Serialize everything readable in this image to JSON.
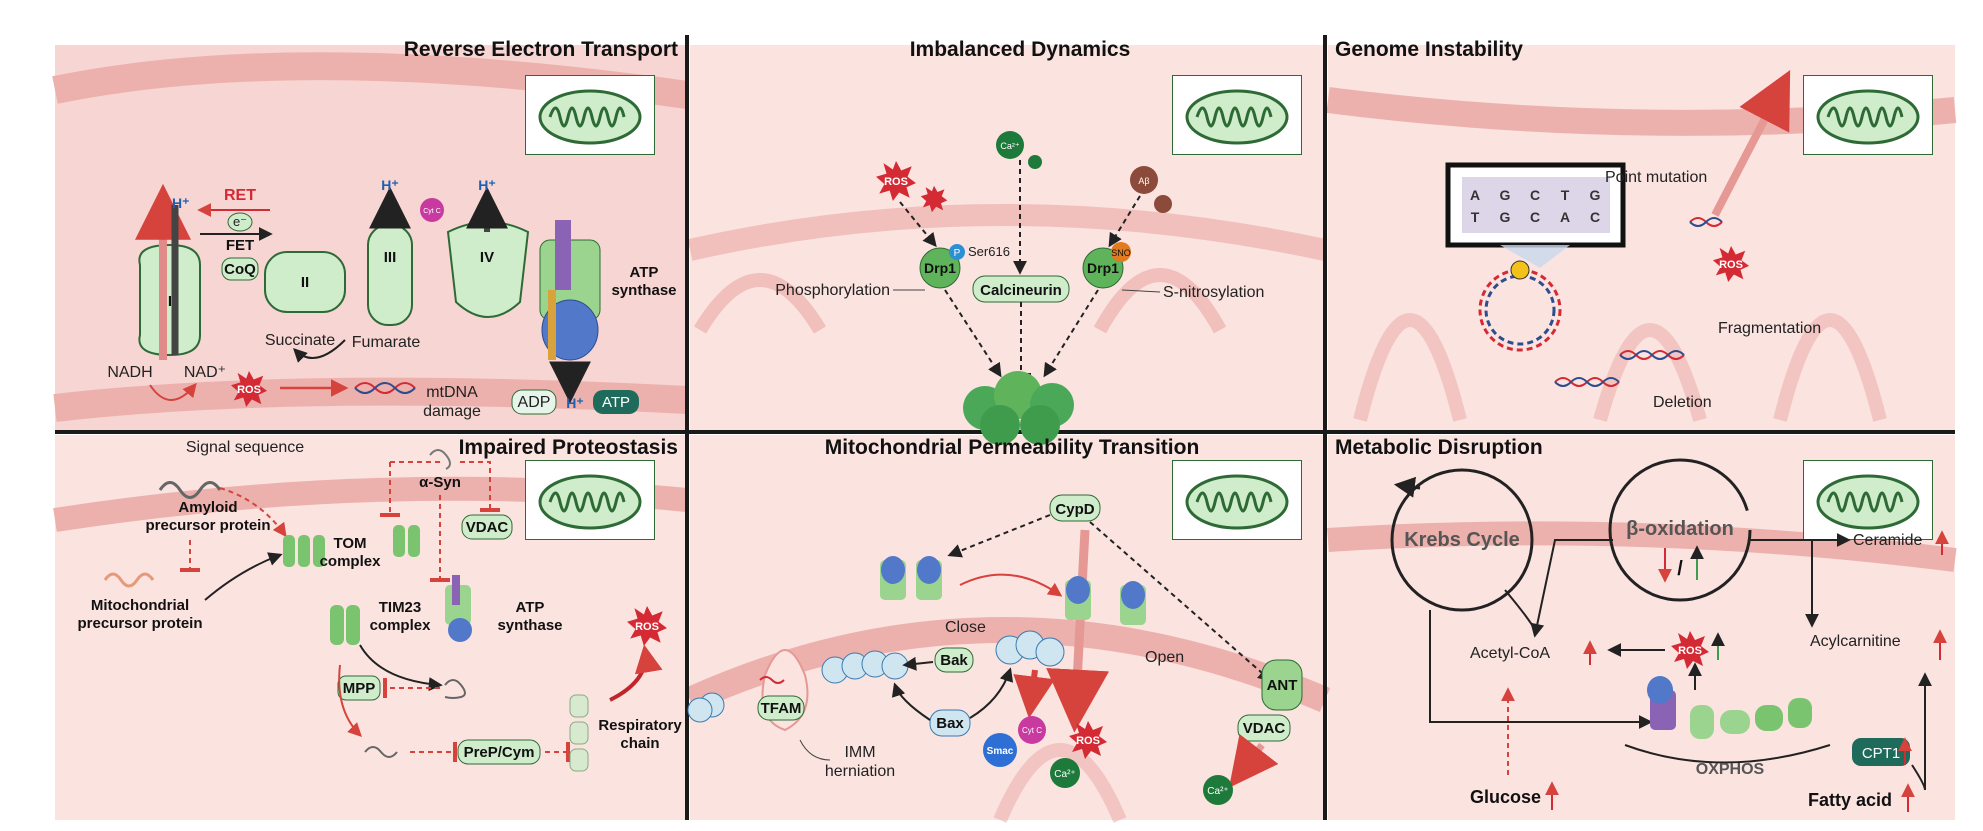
{
  "panels": {
    "ret": {
      "title": "Reverse Electron Transport",
      "ret_label": "RET",
      "fet_label": "FET",
      "electron": "e⁻",
      "coq": "CoQ",
      "complex_1": "I",
      "complex_2": "II",
      "complex_3": "III",
      "complex_4": "IV",
      "proton": "H⁺",
      "cytc": "Cyt C",
      "atp_synthase": [
        "ATP",
        "synthase"
      ],
      "succinate": "Succinate",
      "fumarate": "Fumarate",
      "nadh": "NADH",
      "nad": "NAD⁺",
      "ros": "ROS",
      "mtdna_damage": [
        "mtDNA",
        "damage"
      ],
      "adp": "ADP",
      "atp": "ATP"
    },
    "dynamics": {
      "title": "Imbalanced Dynamics",
      "ca": "Ca²⁺",
      "ros": "ROS",
      "abeta": "Aβ",
      "p": "P",
      "ser616": "Ser616",
      "drp1": "Drp1",
      "sno": "SNO",
      "phosphorylation": "Phosphorylation",
      "calcineurin": "Calcineurin",
      "s_nitrosylation": "S-nitrosylation"
    },
    "genome": {
      "title": "Genome Instability",
      "point_mutation": "Point mutation",
      "fragmentation": "Fragmentation",
      "deletion": "Deletion",
      "ros": "ROS",
      "seq_top": [
        "A",
        "G",
        "C",
        "T",
        "G"
      ],
      "seq_bottom": [
        "T",
        "G",
        "C",
        "A",
        "C"
      ]
    },
    "proteostasis": {
      "title": "Impaired Proteostasis",
      "signal_sequence": "Signal sequence",
      "app": [
        "Amyloid",
        "precursor protein"
      ],
      "mpp_protein": [
        "Mitochondrial",
        "precursor protein"
      ],
      "tom": [
        "TOM",
        "complex"
      ],
      "tim23": [
        "TIM23",
        "complex"
      ],
      "asyn": "α-Syn",
      "vdac": "VDAC",
      "atp_synthase": [
        "ATP",
        "synthase"
      ],
      "mpp": "MPP",
      "prep": "PreP/Cym",
      "resp_chain": [
        "Respiratory",
        "chain"
      ],
      "ros": "ROS"
    },
    "mpt": {
      "title": "Mitochondrial Permeability Transition",
      "cypd": "CypD",
      "close": "Close",
      "open": "Open",
      "bak": "Bak",
      "bax": "Bax",
      "tfam": "TFAM",
      "imm": [
        "IMM",
        "herniation"
      ],
      "cytc": "Cyt C",
      "smac": "Smac",
      "ca": "Ca²⁺",
      "ros": "ROS",
      "ant": "ANT",
      "vdac": "VDAC"
    },
    "metabolic": {
      "title": "Metabolic Disruption",
      "krebs": "Krebs Cycle",
      "beta_ox": "β-oxidation",
      "ceramide": "Ceramide",
      "acetyl_coa": "Acetyl-CoA",
      "acylcarnitine": "Acylcarnitine",
      "oxphos": "OXPHOS",
      "cpt1": "CPT1",
      "glucose": "Glucose",
      "fatty_acid": "Fatty acid",
      "ros": "ROS",
      "slash": "/"
    }
  },
  "colors": {
    "matrix": "#f7d5d2",
    "membrane": "#edb1ad",
    "crista": "#fbe6e4",
    "protein": "#cfeccb",
    "protein_stroke": "#2e6a36",
    "ros": "#d42a34",
    "red_arrow": "#d6423c",
    "blue_text": "#1d5fb0",
    "divider": "#1a1a1a"
  }
}
